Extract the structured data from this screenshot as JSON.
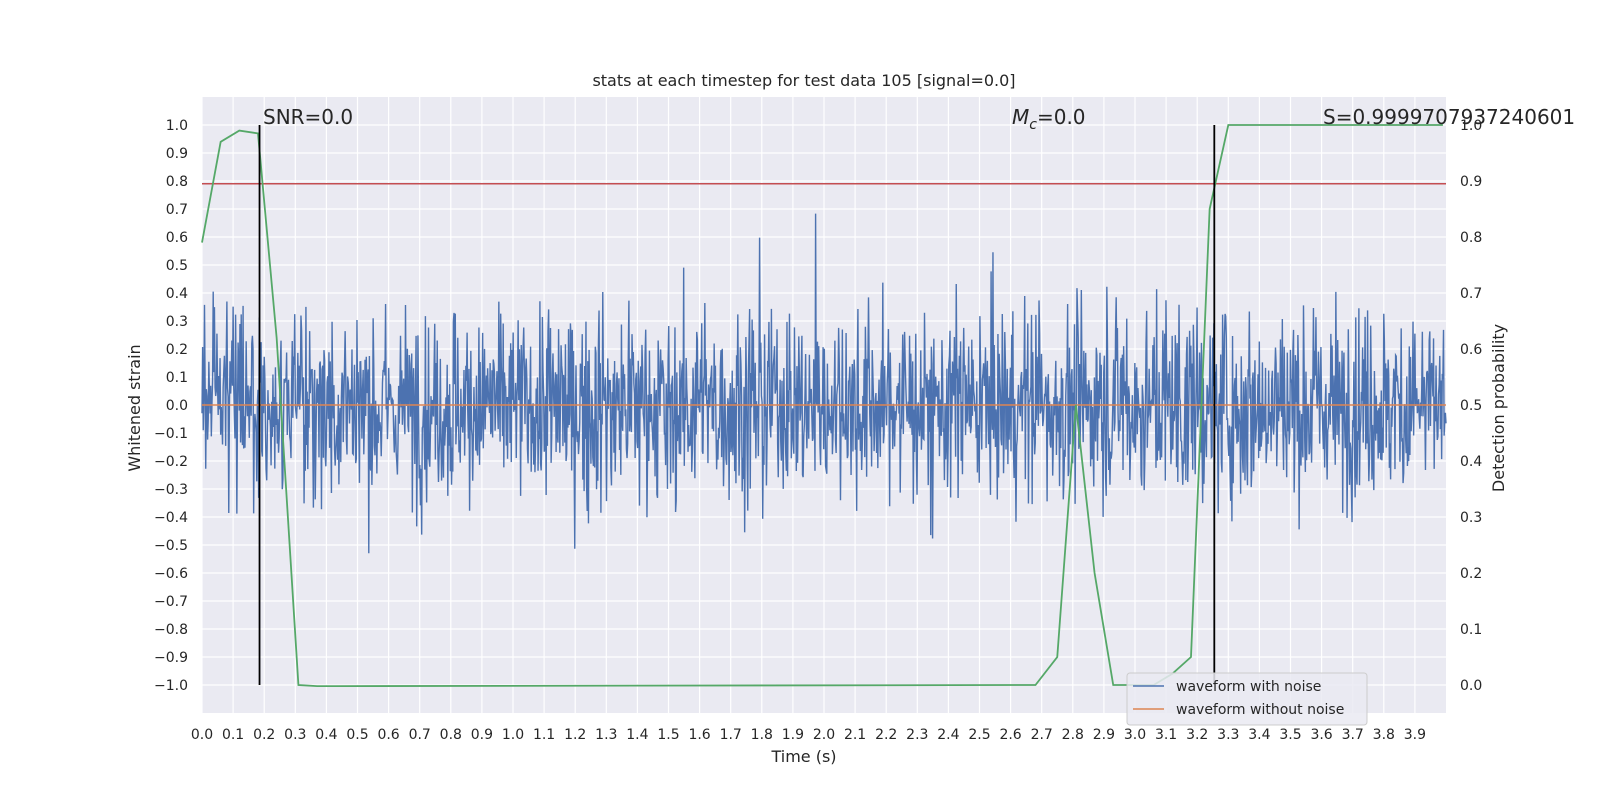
{
  "chart_data": {
    "type": "line",
    "title": "stats at each timestep for test data 105 [signal=0.0]",
    "xlabel": "Time (s)",
    "ylabel": "Whitened strain",
    "y2label": "Detection probability",
    "xlim": [
      0.0,
      4.0
    ],
    "ylim": [
      -1.1,
      1.1
    ],
    "y2lim": [
      -0.05,
      1.05
    ],
    "x_ticks": [
      "0.0",
      "0.1",
      "0.2",
      "0.3",
      "0.4",
      "0.5",
      "0.6",
      "0.7",
      "0.8",
      "0.9",
      "1.0",
      "1.1",
      "1.2",
      "1.3",
      "1.4",
      "1.5",
      "1.6",
      "1.7",
      "1.8",
      "1.9",
      "2.0",
      "2.1",
      "2.2",
      "2.3",
      "2.4",
      "2.5",
      "2.6",
      "2.7",
      "2.8",
      "2.9",
      "3.0",
      "3.1",
      "3.2",
      "3.3",
      "3.4",
      "3.5",
      "3.6",
      "3.7",
      "3.8",
      "3.9"
    ],
    "y_ticks": [
      "1.0",
      "0.9",
      "0.8",
      "0.7",
      "0.6",
      "0.5",
      "0.4",
      "0.3",
      "0.2",
      "0.1",
      "0.0",
      "−0.1",
      "−0.2",
      "−0.3",
      "−0.4",
      "−0.5",
      "−0.6",
      "−0.7",
      "−0.8",
      "−0.9",
      "−1.0"
    ],
    "y2_ticks": [
      "1.0",
      "0.9",
      "0.8",
      "0.7",
      "0.6",
      "0.5",
      "0.4",
      "0.3",
      "0.2",
      "0.1",
      "0.0"
    ],
    "grid": true,
    "legend_position": "lower-right",
    "series": [
      {
        "name": "waveform with noise",
        "color": "#4c72b0",
        "axis": "left",
        "note_values": "whitened strain noise, range about -1.0 to 1.0"
      },
      {
        "name": "waveform without noise",
        "color": "#dd8452",
        "axis": "left",
        "x": [
          0.0,
          4.0
        ],
        "values": [
          0.0,
          0.0
        ]
      },
      {
        "color": "#55a868",
        "axis": "right",
        "x": [
          0.0,
          0.06,
          0.12,
          0.18,
          0.24,
          0.31,
          0.37,
          0.43,
          2.68,
          2.75,
          2.81,
          2.87,
          2.93,
          3.0,
          3.06,
          3.12,
          3.18,
          3.24,
          3.3,
          3.36,
          3.99
        ],
        "values": [
          0.79,
          0.97,
          0.99,
          0.985,
          0.62,
          0.0,
          -0.002,
          -0.002,
          0.0,
          0.05,
          0.5,
          0.2,
          0.0,
          0.0,
          0.0,
          0.02,
          0.05,
          0.85,
          1.0,
          1.0,
          1.0
        ]
      }
    ],
    "hlines": [
      {
        "y": 0.79,
        "axis": "left",
        "color": "#c44e52"
      }
    ],
    "vlines": [
      {
        "x": 0.185,
        "color": "#000000"
      },
      {
        "x": 3.255,
        "color": "#000000"
      }
    ],
    "annotations": {
      "snr": "SNR=0.0",
      "mc_prefix": "M",
      "mc_sub": "c",
      "mc_value": "=0.0",
      "s_value": "S=0.9999707937240601"
    },
    "colors": {
      "plot_bg": "#eaeaf2",
      "grid": "#ffffff",
      "text": "#262626"
    }
  }
}
